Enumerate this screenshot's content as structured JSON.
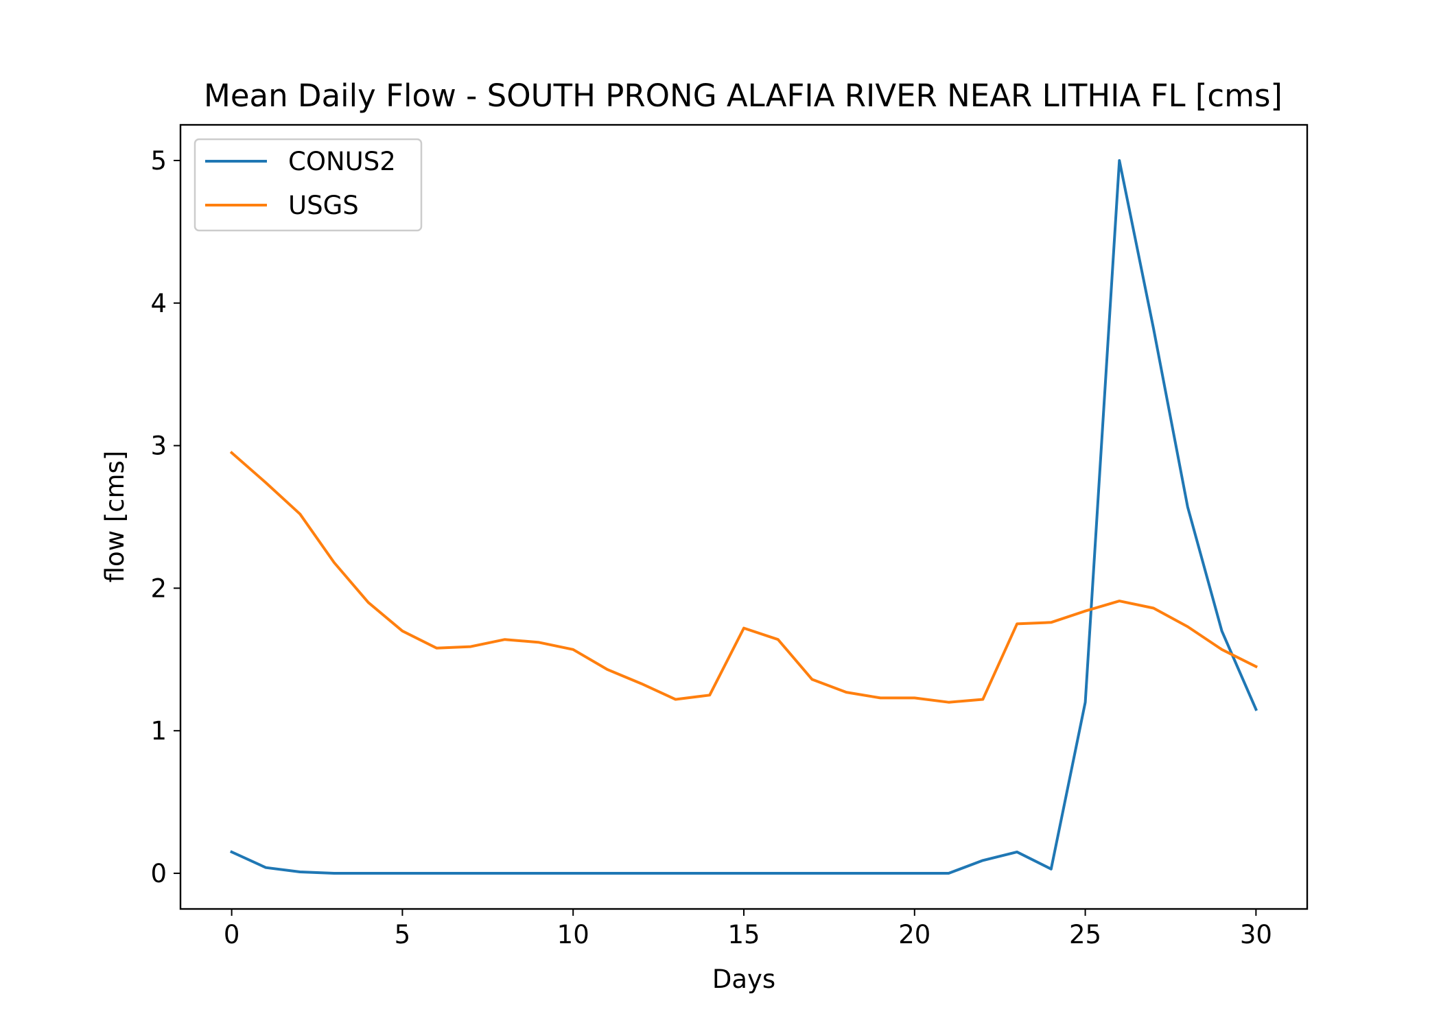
{
  "chart_data": {
    "type": "line",
    "title": "Mean Daily Flow - SOUTH PRONG ALAFIA RIVER NEAR LITHIA FL [cms]",
    "xlabel": "Days",
    "ylabel": "flow [cms]",
    "xlim": [
      -1.5,
      31.5
    ],
    "ylim": [
      -0.25,
      5.25
    ],
    "xticks": [
      0,
      5,
      10,
      15,
      20,
      25,
      30
    ],
    "yticks": [
      0,
      1,
      2,
      3,
      4,
      5
    ],
    "grid": false,
    "legend_position": "upper-left",
    "x": [
      0,
      1,
      2,
      3,
      4,
      5,
      6,
      7,
      8,
      9,
      10,
      11,
      12,
      13,
      14,
      15,
      16,
      17,
      18,
      19,
      20,
      21,
      22,
      23,
      24,
      25,
      26,
      27,
      28,
      29,
      30
    ],
    "series": [
      {
        "name": "CONUS2",
        "color": "#1f77b4",
        "values": [
          0.15,
          0.04,
          0.01,
          0.0,
          0.0,
          0.0,
          0.0,
          0.0,
          0.0,
          0.0,
          0.0,
          0.0,
          0.0,
          0.0,
          0.0,
          0.0,
          0.0,
          0.0,
          0.0,
          0.0,
          0.0,
          0.0,
          0.09,
          0.15,
          0.03,
          1.2,
          5.0,
          3.82,
          2.57,
          1.7,
          1.15
        ]
      },
      {
        "name": "USGS",
        "color": "#ff7f0e",
        "values": [
          2.95,
          2.74,
          2.52,
          2.18,
          1.9,
          1.7,
          1.58,
          1.59,
          1.64,
          1.62,
          1.57,
          1.43,
          1.33,
          1.22,
          1.25,
          1.72,
          1.64,
          1.36,
          1.27,
          1.23,
          1.23,
          1.2,
          1.22,
          1.75,
          1.76,
          1.84,
          1.91,
          1.86,
          1.73,
          1.57,
          1.45
        ]
      }
    ]
  }
}
